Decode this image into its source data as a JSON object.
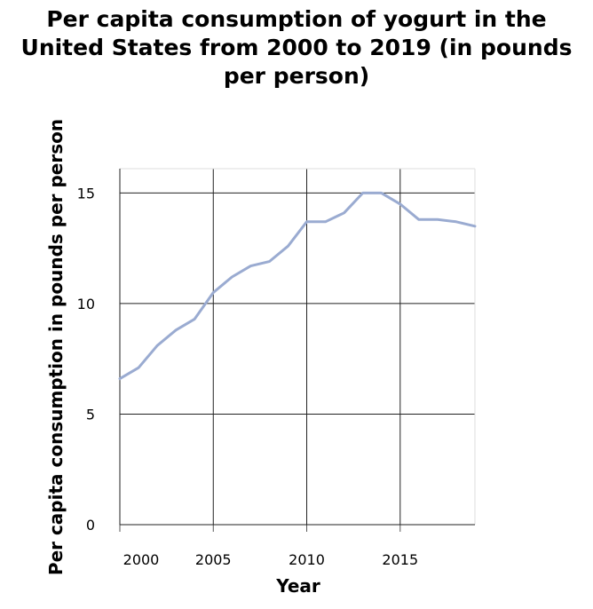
{
  "chart_data": {
    "type": "line",
    "title_lines": [
      "Per capita consumption of yogurt in the",
      "United States from 2000 to 2019 (in pounds",
      "per person)"
    ],
    "xlabel": "Year",
    "ylabel": "Per capita consumption in pounds per person",
    "xlim": [
      2000,
      2019
    ],
    "ylim": [
      0,
      15
    ],
    "ylim_top_padded": 16.1,
    "xticks": [
      2000,
      2005,
      2010,
      2015
    ],
    "xtick_labels": [
      "2000",
      "2005",
      "2010",
      "2015"
    ],
    "yticks": [
      0,
      5,
      10,
      15
    ],
    "ytick_labels": [
      "0",
      "5",
      "10",
      "15"
    ],
    "grid": true,
    "series": [
      {
        "color": "#9aabd1",
        "x": [
          2000,
          2001,
          2002,
          2003,
          2004,
          2005,
          2006,
          2007,
          2008,
          2009,
          2010,
          2011,
          2012,
          2013,
          2014,
          2015,
          2016,
          2017,
          2018,
          2019
        ],
        "y": [
          6.6,
          7.1,
          8.1,
          8.8,
          9.3,
          10.5,
          11.2,
          11.7,
          11.9,
          12.6,
          13.7,
          13.7,
          14.1,
          15.0,
          15.0,
          14.5,
          13.8,
          13.8,
          13.7,
          13.5
        ]
      }
    ]
  }
}
